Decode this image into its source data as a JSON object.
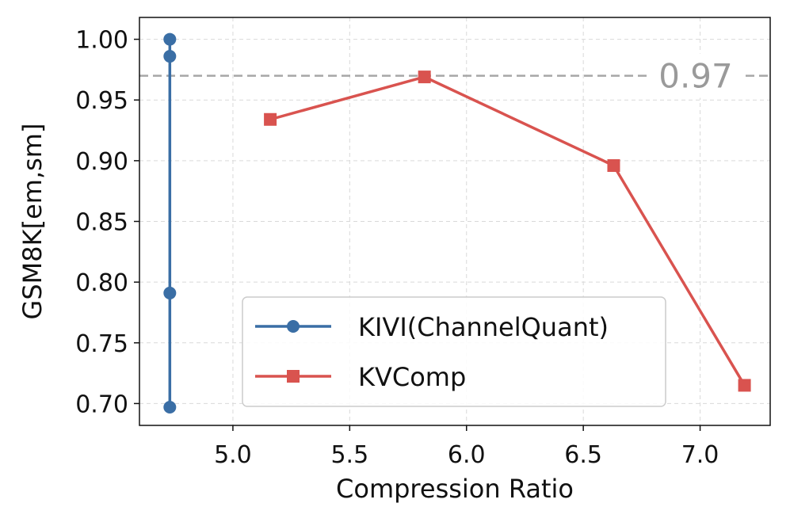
{
  "chart_data": {
    "type": "line",
    "xlabel": "Compression Ratio",
    "ylabel": "GSM8K[em,sm]",
    "xlim": [
      4.6,
      7.3
    ],
    "ylim": [
      0.682,
      1.018
    ],
    "x_ticks": [
      "5.0",
      "5.5",
      "6.0",
      "6.5",
      "7.0"
    ],
    "y_ticks": [
      "0.70",
      "0.75",
      "0.80",
      "0.85",
      "0.90",
      "0.95",
      "1.00"
    ],
    "grid": true,
    "legend_position": "lower-center",
    "reference_line": {
      "y": 0.97,
      "label": "0.97",
      "color": "#a6a6a6"
    },
    "series": [
      {
        "name": "KIVI(ChannelQuant)",
        "color": "#3a6ea5",
        "marker": "circle",
        "x": [
          4.73,
          4.73,
          4.73,
          4.73
        ],
        "y": [
          1.0,
          0.986,
          0.791,
          0.697
        ]
      },
      {
        "name": "KVComp",
        "color": "#d9534f",
        "marker": "square",
        "x": [
          5.16,
          5.82,
          6.63,
          7.19
        ],
        "y": [
          0.934,
          0.969,
          0.896,
          0.715
        ]
      }
    ]
  }
}
